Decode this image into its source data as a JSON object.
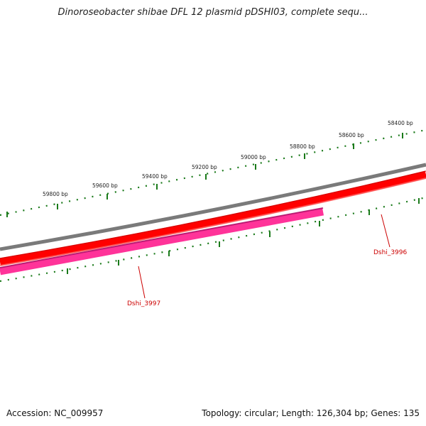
{
  "title": "Dinoroseobacter shibae DFL 12 plasmid pDSHI03, complete sequ...",
  "footer": {
    "accession": "Accession: NC_009957",
    "summary": "Topology: circular; Length: 126,304 bp; Genes: 135"
  },
  "scale": {
    "outer_labels": [
      "59800 bp",
      "59600 bp",
      "59400 bp",
      "59200 bp",
      "59000 bp",
      "58800 bp",
      "58600 bp",
      "58400 bp"
    ]
  },
  "genes": [
    {
      "name": "Dshi_3996",
      "color": "#cc0000"
    },
    {
      "name": "Dshi_3997",
      "color": "#cc0000"
    }
  ],
  "colors": {
    "backbone": "#808080",
    "forward_strand": "#ff0000",
    "reverse_strand": "#ff3399",
    "tick": "#1a7a1a"
  }
}
